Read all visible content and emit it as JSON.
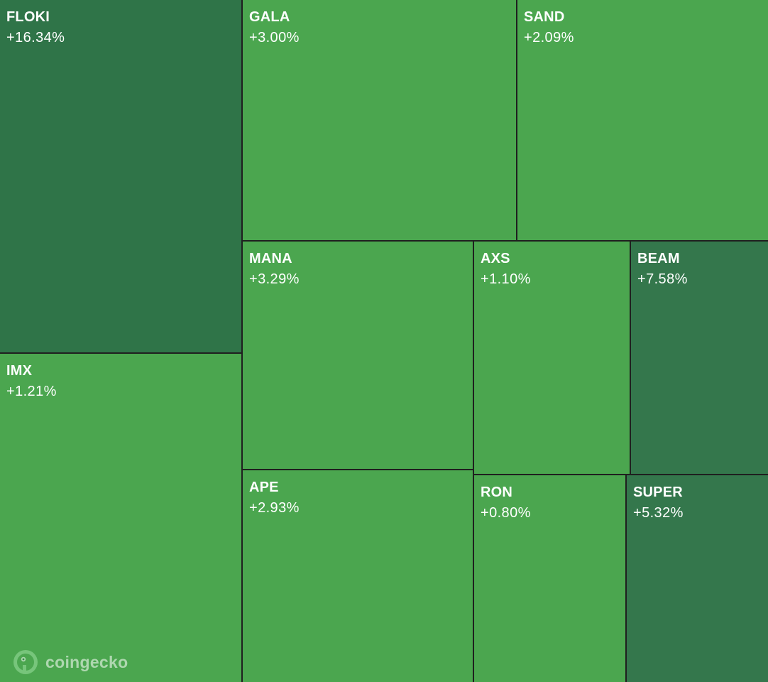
{
  "chart_data": {
    "type": "treemap",
    "items": [
      {
        "symbol": "FLOKI",
        "change": "+16.34%",
        "change_value": 16.34,
        "color": "#2f7448"
      },
      {
        "symbol": "GALA",
        "change": "+3.00%",
        "change_value": 3.0,
        "color": "#4ba64f"
      },
      {
        "symbol": "SAND",
        "change": "+2.09%",
        "change_value": 2.09,
        "color": "#4ba64f"
      },
      {
        "symbol": "IMX",
        "change": "+1.21%",
        "change_value": 1.21,
        "color": "#4ba64f"
      },
      {
        "symbol": "MANA",
        "change": "+3.29%",
        "change_value": 3.29,
        "color": "#4ba64f"
      },
      {
        "symbol": "AXS",
        "change": "+1.10%",
        "change_value": 1.1,
        "color": "#4ba64f"
      },
      {
        "symbol": "BEAM",
        "change": "+7.58%",
        "change_value": 7.58,
        "color": "#34774c"
      },
      {
        "symbol": "APE",
        "change": "+2.93%",
        "change_value": 2.93,
        "color": "#4ba64f"
      },
      {
        "symbol": "RON",
        "change": "+0.80%",
        "change_value": 0.8,
        "color": "#4ba64f"
      },
      {
        "symbol": "SUPER",
        "change": "+5.32%",
        "change_value": 5.32,
        "color": "#34774c"
      }
    ]
  },
  "watermark": {
    "text": "coingecko",
    "icon": "coingecko-logo-icon"
  }
}
